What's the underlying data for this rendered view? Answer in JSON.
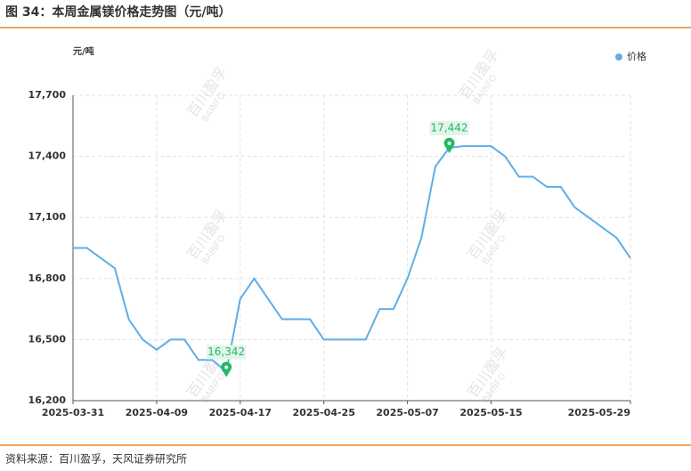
{
  "header": {
    "title": "图 34：本周金属镁价格走势图（元/吨）"
  },
  "chart_data": {
    "type": "line",
    "y_label": "元/吨",
    "watermark": [
      "百川盈孚",
      "BAINFO"
    ],
    "categories": [
      "2025-03-31",
      null,
      null,
      null,
      null,
      null,
      "2025-04-09",
      null,
      null,
      null,
      null,
      null,
      "2025-04-17",
      null,
      null,
      null,
      null,
      null,
      "2025-04-25",
      null,
      null,
      null,
      null,
      null,
      "2025-05-07",
      null,
      null,
      null,
      null,
      null,
      "2025-05-15",
      null,
      null,
      null,
      null,
      null,
      null,
      null,
      null,
      null,
      "2025-05-29"
    ],
    "series": [
      {
        "name": "价格",
        "color": "#5daee9",
        "values": [
          16950,
          16950,
          16900,
          16850,
          16600,
          16500,
          16450,
          16500,
          16500,
          16400,
          16400,
          16342,
          16700,
          16800,
          16700,
          16600,
          16600,
          16600,
          16500,
          16500,
          16500,
          16500,
          16650,
          16650,
          16800,
          17000,
          17350,
          17442,
          17450,
          17450,
          17450,
          17400,
          17300,
          17300,
          17250,
          17250,
          17150,
          17100,
          17050,
          17000,
          16900
        ],
        "value_labels": [
          null,
          null,
          null,
          null,
          null,
          null,
          null,
          null,
          null,
          null,
          null,
          "16,342",
          null,
          null,
          null,
          null,
          null,
          null,
          null,
          null,
          null,
          null,
          null,
          null,
          null,
          null,
          null,
          "17,442",
          null,
          null,
          null,
          null,
          null,
          null,
          null,
          null,
          null,
          null,
          null,
          null,
          null
        ]
      }
    ],
    "ylim": [
      16200,
      17700
    ],
    "yticks": [
      {
        "value": 16200,
        "label": "16,200"
      },
      {
        "value": 16500,
        "label": "16,500"
      },
      {
        "value": 16800,
        "label": "16,800"
      },
      {
        "value": 17100,
        "label": "17,100"
      },
      {
        "value": 17400,
        "label": "17,400"
      },
      {
        "value": 17700,
        "label": "17,700"
      }
    ],
    "grid": true,
    "legend": "top-right"
  },
  "footer": {
    "source": "资料来源：百川盈孚，天风证券研究所"
  }
}
